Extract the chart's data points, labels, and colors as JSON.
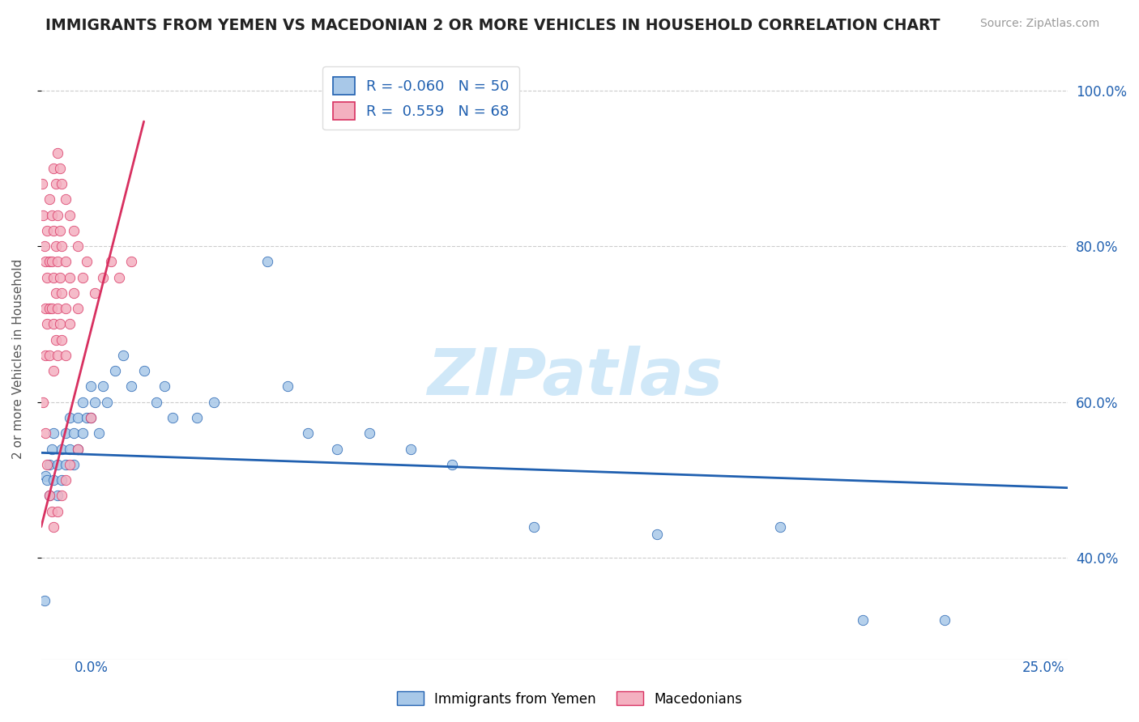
{
  "title": "IMMIGRANTS FROM YEMEN VS MACEDONIAN 2 OR MORE VEHICLES IN HOUSEHOLD CORRELATION CHART",
  "source": "Source: ZipAtlas.com",
  "legend_blue_R": "-0.060",
  "legend_blue_N": "50",
  "legend_pink_R": "0.559",
  "legend_pink_N": "68",
  "blue_color": "#a8c8e8",
  "pink_color": "#f4b0c0",
  "blue_line_color": "#2060b0",
  "pink_line_color": "#d83060",
  "watermark_color": "#d0e8f8",
  "blue_scatter": [
    [
      0.0008,
      0.345
    ],
    [
      0.001,
      0.505
    ],
    [
      0.0015,
      0.5
    ],
    [
      0.002,
      0.52
    ],
    [
      0.002,
      0.48
    ],
    [
      0.0025,
      0.54
    ],
    [
      0.003,
      0.5
    ],
    [
      0.003,
      0.56
    ],
    [
      0.004,
      0.52
    ],
    [
      0.004,
      0.48
    ],
    [
      0.005,
      0.54
    ],
    [
      0.005,
      0.5
    ],
    [
      0.006,
      0.56
    ],
    [
      0.006,
      0.52
    ],
    [
      0.007,
      0.58
    ],
    [
      0.007,
      0.54
    ],
    [
      0.008,
      0.56
    ],
    [
      0.008,
      0.52
    ],
    [
      0.009,
      0.58
    ],
    [
      0.009,
      0.54
    ],
    [
      0.01,
      0.6
    ],
    [
      0.01,
      0.56
    ],
    [
      0.011,
      0.58
    ],
    [
      0.012,
      0.62
    ],
    [
      0.012,
      0.58
    ],
    [
      0.013,
      0.6
    ],
    [
      0.014,
      0.56
    ],
    [
      0.015,
      0.62
    ],
    [
      0.016,
      0.6
    ],
    [
      0.018,
      0.64
    ],
    [
      0.02,
      0.66
    ],
    [
      0.022,
      0.62
    ],
    [
      0.025,
      0.64
    ],
    [
      0.028,
      0.6
    ],
    [
      0.03,
      0.62
    ],
    [
      0.032,
      0.58
    ],
    [
      0.038,
      0.58
    ],
    [
      0.042,
      0.6
    ],
    [
      0.055,
      0.78
    ],
    [
      0.06,
      0.62
    ],
    [
      0.065,
      0.56
    ],
    [
      0.072,
      0.54
    ],
    [
      0.08,
      0.56
    ],
    [
      0.09,
      0.54
    ],
    [
      0.1,
      0.52
    ],
    [
      0.12,
      0.44
    ],
    [
      0.15,
      0.43
    ],
    [
      0.18,
      0.44
    ],
    [
      0.2,
      0.32
    ],
    [
      0.22,
      0.32
    ]
  ],
  "pink_scatter": [
    [
      0.0003,
      0.88
    ],
    [
      0.0005,
      0.84
    ],
    [
      0.0008,
      0.8
    ],
    [
      0.001,
      0.78
    ],
    [
      0.001,
      0.72
    ],
    [
      0.001,
      0.66
    ],
    [
      0.0015,
      0.82
    ],
    [
      0.0015,
      0.76
    ],
    [
      0.0015,
      0.7
    ],
    [
      0.002,
      0.86
    ],
    [
      0.002,
      0.78
    ],
    [
      0.002,
      0.72
    ],
    [
      0.002,
      0.66
    ],
    [
      0.0025,
      0.84
    ],
    [
      0.0025,
      0.78
    ],
    [
      0.0025,
      0.72
    ],
    [
      0.003,
      0.9
    ],
    [
      0.003,
      0.82
    ],
    [
      0.003,
      0.76
    ],
    [
      0.003,
      0.7
    ],
    [
      0.003,
      0.64
    ],
    [
      0.0035,
      0.88
    ],
    [
      0.0035,
      0.8
    ],
    [
      0.0035,
      0.74
    ],
    [
      0.0035,
      0.68
    ],
    [
      0.004,
      0.92
    ],
    [
      0.004,
      0.84
    ],
    [
      0.004,
      0.78
    ],
    [
      0.004,
      0.72
    ],
    [
      0.004,
      0.66
    ],
    [
      0.0045,
      0.9
    ],
    [
      0.0045,
      0.82
    ],
    [
      0.0045,
      0.76
    ],
    [
      0.0045,
      0.7
    ],
    [
      0.005,
      0.88
    ],
    [
      0.005,
      0.8
    ],
    [
      0.005,
      0.74
    ],
    [
      0.005,
      0.68
    ],
    [
      0.006,
      0.86
    ],
    [
      0.006,
      0.78
    ],
    [
      0.006,
      0.72
    ],
    [
      0.006,
      0.66
    ],
    [
      0.007,
      0.84
    ],
    [
      0.007,
      0.76
    ],
    [
      0.007,
      0.7
    ],
    [
      0.008,
      0.82
    ],
    [
      0.008,
      0.74
    ],
    [
      0.009,
      0.8
    ],
    [
      0.009,
      0.72
    ],
    [
      0.01,
      0.76
    ],
    [
      0.011,
      0.78
    ],
    [
      0.013,
      0.74
    ],
    [
      0.015,
      0.76
    ],
    [
      0.017,
      0.78
    ],
    [
      0.019,
      0.76
    ],
    [
      0.022,
      0.78
    ],
    [
      0.0005,
      0.6
    ],
    [
      0.001,
      0.56
    ],
    [
      0.0015,
      0.52
    ],
    [
      0.002,
      0.48
    ],
    [
      0.0025,
      0.46
    ],
    [
      0.003,
      0.44
    ],
    [
      0.004,
      0.46
    ],
    [
      0.005,
      0.48
    ],
    [
      0.006,
      0.5
    ],
    [
      0.007,
      0.52
    ],
    [
      0.009,
      0.54
    ],
    [
      0.012,
      0.58
    ]
  ],
  "blue_trend_x": [
    0.0,
    0.25
  ],
  "blue_trend_y": [
    0.535,
    0.49
  ],
  "pink_trend_x": [
    0.0,
    0.025
  ],
  "pink_trend_y": [
    0.44,
    0.96
  ],
  "xmin": 0.0,
  "xmax": 0.25,
  "ymin": 0.27,
  "ymax": 1.04,
  "yticks": [
    0.4,
    0.6,
    0.8,
    1.0
  ],
  "ytick_labels": [
    "40.0%",
    "60.0%",
    "80.0%",
    "100.0%"
  ]
}
